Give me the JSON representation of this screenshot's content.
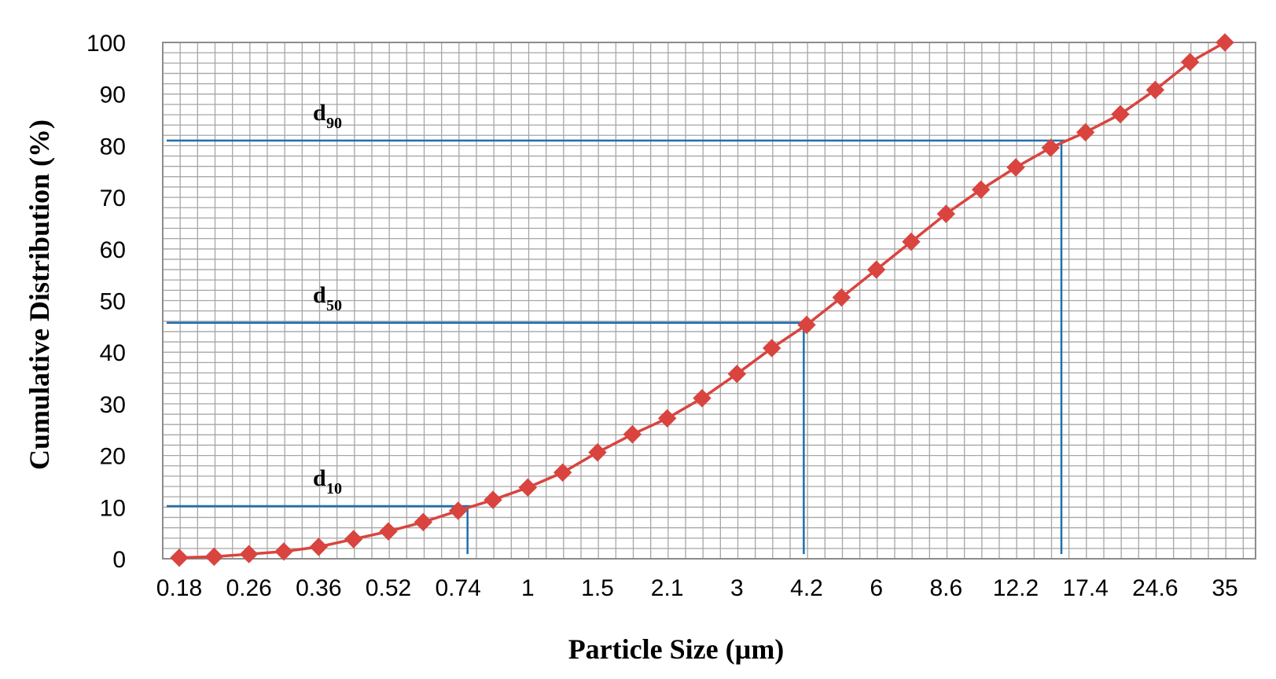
{
  "chart_data": {
    "type": "line",
    "xlabel": "Particle Size (µm)",
    "ylabel": "Cumulative Distribution (%)",
    "ylim": [
      0,
      100
    ],
    "yticks": [
      "0",
      "10",
      "20",
      "30",
      "40",
      "50",
      "60",
      "70",
      "80",
      "90",
      "100"
    ],
    "x_tick_labels": [
      "0.18",
      "0.26",
      "0.36",
      "0.52",
      "0.74",
      "1",
      "1.5",
      "2.1",
      "3",
      "4.2",
      "6",
      "8.6",
      "12.2",
      "17.4",
      "24.6",
      "35"
    ],
    "grid": true,
    "marker": "diamond",
    "colors": {
      "series": "#d9443f",
      "reference": "#1f6fad",
      "grid": "#a6a6a6"
    },
    "series": [
      {
        "values": [
          0.2,
          0.4,
          0.9,
          1.4,
          2.3,
          3.8,
          5.3,
          7.1,
          9.3,
          11.4,
          13.8,
          16.7,
          20.6,
          24.1,
          27.2,
          31.1,
          35.8,
          40.8,
          45.3,
          50.6,
          56.0,
          61.4,
          66.8,
          71.5,
          75.8,
          79.6,
          82.6,
          86.1,
          90.8,
          96.2,
          100.0
        ]
      }
    ],
    "annotations": [
      {
        "main": "d",
        "sub": "10",
        "y": 10.2
      },
      {
        "main": "d",
        "sub": "50",
        "y": 45.7
      },
      {
        "main": "d",
        "sub": "90",
        "y": 81.0
      }
    ]
  }
}
